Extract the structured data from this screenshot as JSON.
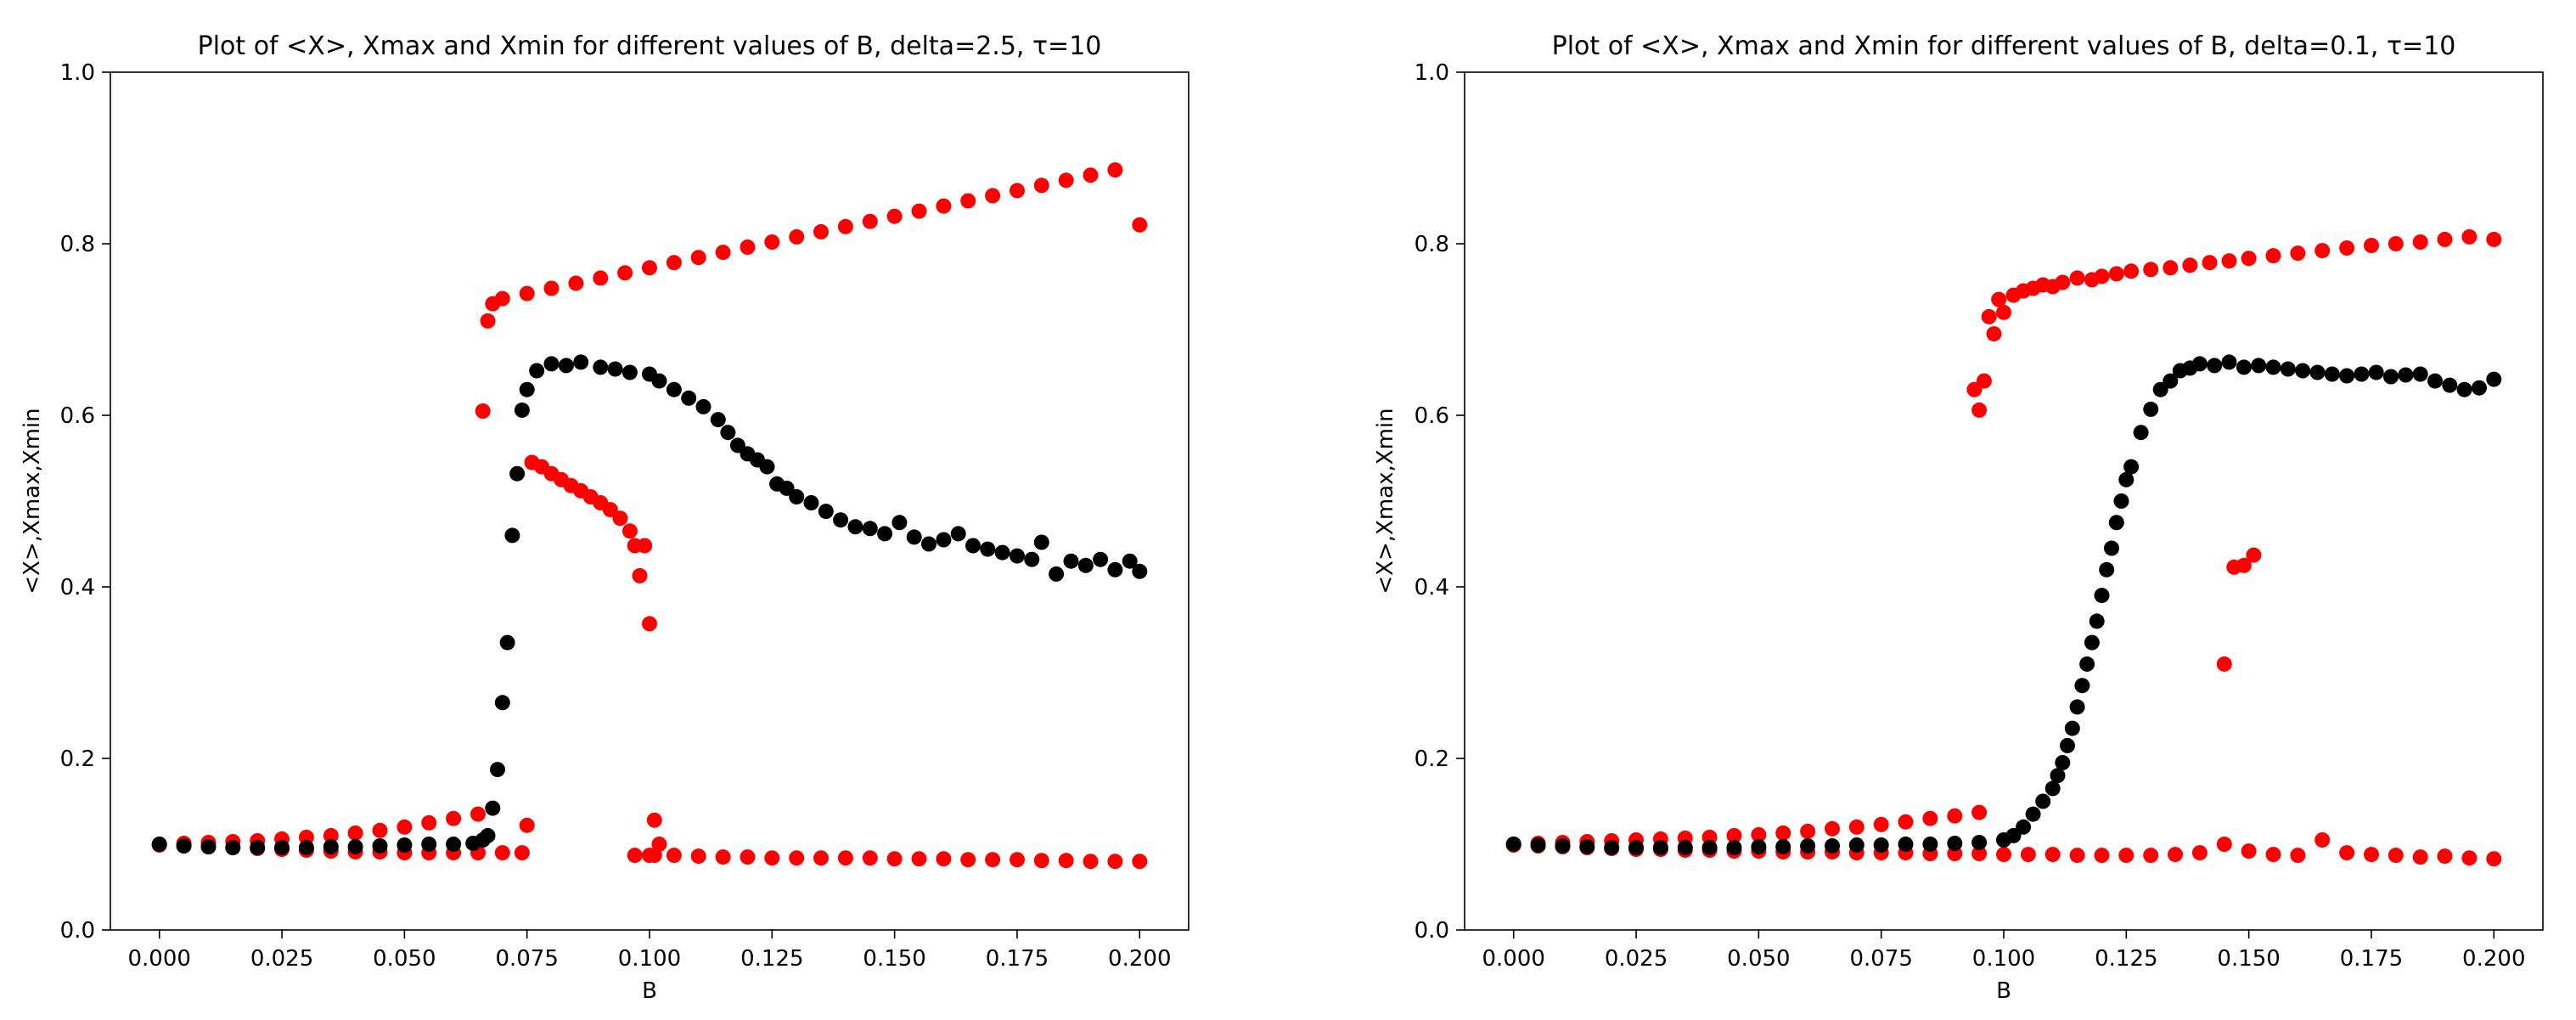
{
  "colors": {
    "series_xmaxmin": "#ff0000",
    "series_mean": "#000000",
    "axes": "#000000"
  },
  "chart_data": [
    {
      "type": "scatter",
      "title": "Plot of <X>, Xmax and Xmin for different values of B, delta=2.5, τ=10",
      "xlabel": "B",
      "ylabel": "<X>,Xmax,Xmin",
      "xlim": [
        -0.01,
        0.21
      ],
      "ylim": [
        0.0,
        1.0
      ],
      "xticks": [
        0.0,
        0.025,
        0.05,
        0.075,
        0.1,
        0.125,
        0.15,
        0.175,
        0.2
      ],
      "xtick_labels": [
        "0.000",
        "0.025",
        "0.050",
        "0.075",
        "0.100",
        "0.125",
        "0.150",
        "0.175",
        "0.200"
      ],
      "yticks": [
        0.0,
        0.2,
        0.4,
        0.6,
        0.8,
        1.0
      ],
      "ytick_labels": [
        "0.0",
        "0.2",
        "0.4",
        "0.6",
        "0.8",
        "1.0"
      ],
      "grid": false,
      "series": [
        {
          "color": "#ff0000",
          "x": [
            0.0,
            0.005,
            0.01,
            0.015,
            0.02,
            0.025,
            0.03,
            0.035,
            0.04,
            0.045,
            0.05,
            0.055,
            0.06,
            0.065,
            0.066,
            0.067,
            0.068,
            0.07,
            0.075,
            0.08,
            0.085,
            0.09,
            0.095,
            0.1,
            0.105,
            0.11,
            0.115,
            0.12,
            0.125,
            0.13,
            0.135,
            0.14,
            0.145,
            0.15,
            0.155,
            0.16,
            0.165,
            0.17,
            0.175,
            0.18,
            0.185,
            0.19,
            0.195,
            0.2,
            0.0,
            0.005,
            0.01,
            0.015,
            0.02,
            0.025,
            0.03,
            0.035,
            0.04,
            0.045,
            0.05,
            0.055,
            0.06,
            0.065,
            0.07,
            0.074,
            0.075,
            0.076,
            0.078,
            0.08,
            0.082,
            0.084,
            0.086,
            0.088,
            0.09,
            0.092,
            0.094,
            0.096,
            0.097,
            0.098,
            0.099,
            0.1,
            0.101,
            0.097,
            0.1,
            0.101,
            0.102,
            0.105,
            0.11,
            0.115,
            0.12,
            0.125,
            0.13,
            0.135,
            0.14,
            0.145,
            0.15,
            0.155,
            0.16,
            0.165,
            0.17,
            0.175,
            0.18,
            0.185,
            0.19,
            0.195,
            0.2
          ],
          "y": [
            0.1,
            0.101,
            0.102,
            0.103,
            0.104,
            0.106,
            0.108,
            0.11,
            0.113,
            0.116,
            0.12,
            0.125,
            0.13,
            0.135,
            0.605,
            0.71,
            0.73,
            0.736,
            0.742,
            0.748,
            0.754,
            0.76,
            0.766,
            0.772,
            0.778,
            0.784,
            0.79,
            0.796,
            0.802,
            0.808,
            0.814,
            0.82,
            0.826,
            0.832,
            0.838,
            0.844,
            0.85,
            0.856,
            0.862,
            0.868,
            0.874,
            0.88,
            0.886,
            0.822,
            0.099,
            0.098,
            0.097,
            0.096,
            0.095,
            0.094,
            0.093,
            0.092,
            0.091,
            0.091,
            0.09,
            0.09,
            0.09,
            0.09,
            0.09,
            0.09,
            0.122,
            0.545,
            0.54,
            0.532,
            0.525,
            0.518,
            0.512,
            0.505,
            0.498,
            0.49,
            0.48,
            0.465,
            0.448,
            0.413,
            0.448,
            0.357,
            0.087,
            0.087,
            0.087,
            0.128,
            0.1,
            0.087,
            0.086,
            0.085,
            0.085,
            0.084,
            0.084,
            0.084,
            0.084,
            0.084,
            0.083,
            0.083,
            0.083,
            0.082,
            0.082,
            0.082,
            0.081,
            0.081,
            0.08,
            0.08,
            0.08
          ]
        },
        {
          "color": "#000000",
          "x": [
            0.0,
            0.005,
            0.01,
            0.015,
            0.02,
            0.025,
            0.03,
            0.035,
            0.04,
            0.045,
            0.05,
            0.055,
            0.06,
            0.064,
            0.066,
            0.067,
            0.068,
            0.069,
            0.07,
            0.071,
            0.072,
            0.073,
            0.074,
            0.075,
            0.077,
            0.08,
            0.083,
            0.086,
            0.09,
            0.093,
            0.096,
            0.1,
            0.102,
            0.105,
            0.108,
            0.111,
            0.114,
            0.116,
            0.118,
            0.12,
            0.122,
            0.124,
            0.126,
            0.128,
            0.13,
            0.133,
            0.136,
            0.139,
            0.142,
            0.145,
            0.148,
            0.151,
            0.154,
            0.157,
            0.16,
            0.163,
            0.166,
            0.169,
            0.172,
            0.175,
            0.178,
            0.18,
            0.183,
            0.186,
            0.189,
            0.192,
            0.195,
            0.198,
            0.2
          ],
          "y": [
            0.1,
            0.098,
            0.097,
            0.096,
            0.096,
            0.096,
            0.096,
            0.097,
            0.097,
            0.098,
            0.099,
            0.1,
            0.1,
            0.101,
            0.105,
            0.11,
            0.142,
            0.187,
            0.265,
            0.335,
            0.46,
            0.532,
            0.606,
            0.63,
            0.652,
            0.66,
            0.658,
            0.662,
            0.656,
            0.654,
            0.65,
            0.648,
            0.64,
            0.63,
            0.62,
            0.61,
            0.595,
            0.58,
            0.565,
            0.555,
            0.548,
            0.54,
            0.52,
            0.515,
            0.505,
            0.498,
            0.488,
            0.478,
            0.47,
            0.468,
            0.462,
            0.475,
            0.458,
            0.45,
            0.455,
            0.462,
            0.448,
            0.444,
            0.44,
            0.436,
            0.432,
            0.452,
            0.415,
            0.43,
            0.425,
            0.432,
            0.42,
            0.43,
            0.418
          ]
        }
      ]
    },
    {
      "type": "scatter",
      "title": "Plot of <X>, Xmax and Xmin for different values of B, delta=0.1, τ=10",
      "xlabel": "B",
      "ylabel": "<X>,Xmax,Xmin",
      "xlim": [
        -0.01,
        0.21
      ],
      "ylim": [
        0.0,
        1.0
      ],
      "xticks": [
        0.0,
        0.025,
        0.05,
        0.075,
        0.1,
        0.125,
        0.15,
        0.175,
        0.2
      ],
      "xtick_labels": [
        "0.000",
        "0.025",
        "0.050",
        "0.075",
        "0.100",
        "0.125",
        "0.150",
        "0.175",
        "0.200"
      ],
      "yticks": [
        0.0,
        0.2,
        0.4,
        0.6,
        0.8,
        1.0
      ],
      "ytick_labels": [
        "0.0",
        "0.2",
        "0.4",
        "0.6",
        "0.8",
        "1.0"
      ],
      "grid": false,
      "series": [
        {
          "color": "#ff0000",
          "x": [
            0.0,
            0.005,
            0.01,
            0.015,
            0.02,
            0.025,
            0.03,
            0.035,
            0.04,
            0.045,
            0.05,
            0.055,
            0.06,
            0.065,
            0.07,
            0.075,
            0.08,
            0.085,
            0.09,
            0.095,
            0.094,
            0.095,
            0.096,
            0.097,
            0.098,
            0.099,
            0.1,
            0.102,
            0.104,
            0.106,
            0.108,
            0.11,
            0.112,
            0.115,
            0.118,
            0.12,
            0.123,
            0.126,
            0.13,
            0.134,
            0.138,
            0.142,
            0.146,
            0.15,
            0.155,
            0.16,
            0.165,
            0.17,
            0.175,
            0.18,
            0.185,
            0.19,
            0.195,
            0.2,
            0.0,
            0.005,
            0.01,
            0.015,
            0.02,
            0.025,
            0.03,
            0.035,
            0.04,
            0.045,
            0.05,
            0.055,
            0.06,
            0.065,
            0.07,
            0.075,
            0.08,
            0.085,
            0.09,
            0.095,
            0.1,
            0.105,
            0.11,
            0.115,
            0.12,
            0.125,
            0.13,
            0.135,
            0.14,
            0.145,
            0.15,
            0.155,
            0.16,
            0.165,
            0.17,
            0.175,
            0.18,
            0.185,
            0.19,
            0.195,
            0.2,
            0.145,
            0.147,
            0.149,
            0.151
          ],
          "y": [
            0.1,
            0.101,
            0.102,
            0.103,
            0.104,
            0.105,
            0.106,
            0.107,
            0.108,
            0.11,
            0.111,
            0.113,
            0.115,
            0.118,
            0.12,
            0.123,
            0.126,
            0.13,
            0.133,
            0.137,
            0.63,
            0.606,
            0.64,
            0.715,
            0.695,
            0.735,
            0.72,
            0.74,
            0.745,
            0.748,
            0.752,
            0.75,
            0.755,
            0.76,
            0.758,
            0.762,
            0.765,
            0.768,
            0.77,
            0.772,
            0.775,
            0.778,
            0.78,
            0.783,
            0.786,
            0.789,
            0.792,
            0.795,
            0.798,
            0.8,
            0.802,
            0.805,
            0.808,
            0.805,
            0.099,
            0.098,
            0.097,
            0.096,
            0.095,
            0.094,
            0.094,
            0.093,
            0.093,
            0.092,
            0.092,
            0.091,
            0.091,
            0.091,
            0.09,
            0.09,
            0.09,
            0.089,
            0.089,
            0.089,
            0.088,
            0.088,
            0.088,
            0.087,
            0.087,
            0.087,
            0.087,
            0.088,
            0.09,
            0.1,
            0.092,
            0.088,
            0.087,
            0.105,
            0.09,
            0.088,
            0.087,
            0.085,
            0.086,
            0.084,
            0.083,
            0.31,
            0.423,
            0.425,
            0.437
          ]
        },
        {
          "color": "#000000",
          "x": [
            0.0,
            0.005,
            0.01,
            0.015,
            0.02,
            0.025,
            0.03,
            0.035,
            0.04,
            0.045,
            0.05,
            0.055,
            0.06,
            0.065,
            0.07,
            0.075,
            0.08,
            0.085,
            0.09,
            0.095,
            0.1,
            0.102,
            0.104,
            0.106,
            0.108,
            0.11,
            0.111,
            0.112,
            0.113,
            0.114,
            0.115,
            0.116,
            0.117,
            0.118,
            0.119,
            0.12,
            0.121,
            0.122,
            0.123,
            0.124,
            0.125,
            0.126,
            0.128,
            0.13,
            0.132,
            0.134,
            0.136,
            0.138,
            0.14,
            0.143,
            0.146,
            0.149,
            0.152,
            0.155,
            0.158,
            0.161,
            0.164,
            0.167,
            0.17,
            0.173,
            0.176,
            0.179,
            0.182,
            0.185,
            0.188,
            0.191,
            0.194,
            0.197,
            0.2
          ],
          "y": [
            0.1,
            0.099,
            0.098,
            0.097,
            0.096,
            0.096,
            0.096,
            0.096,
            0.096,
            0.096,
            0.097,
            0.097,
            0.098,
            0.098,
            0.099,
            0.099,
            0.1,
            0.1,
            0.101,
            0.102,
            0.105,
            0.11,
            0.12,
            0.135,
            0.15,
            0.165,
            0.18,
            0.195,
            0.215,
            0.235,
            0.26,
            0.285,
            0.31,
            0.335,
            0.36,
            0.39,
            0.42,
            0.445,
            0.475,
            0.5,
            0.525,
            0.54,
            0.58,
            0.607,
            0.63,
            0.64,
            0.652,
            0.655,
            0.66,
            0.658,
            0.662,
            0.656,
            0.658,
            0.656,
            0.654,
            0.652,
            0.65,
            0.648,
            0.646,
            0.648,
            0.65,
            0.645,
            0.647,
            0.648,
            0.64,
            0.635,
            0.63,
            0.632,
            0.642
          ]
        }
      ]
    }
  ]
}
